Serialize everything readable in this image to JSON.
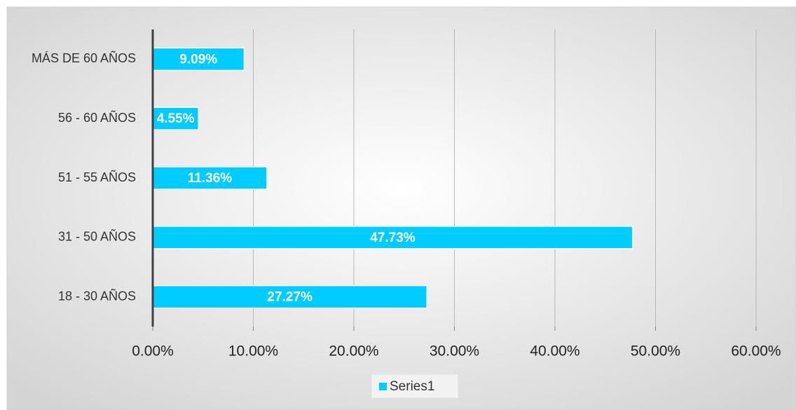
{
  "chart_data": {
    "type": "bar",
    "orientation": "horizontal",
    "categories": [
      "18 - 30 AÑOS",
      "31 - 50 AÑOS",
      "51 - 55 AÑOS",
      "56 - 60 AÑOS",
      "MÁS DE 60 AÑOS"
    ],
    "series": [
      {
        "name": "Series1",
        "color": "#00ccff",
        "values": [
          27.27,
          47.73,
          11.36,
          4.55,
          9.09
        ],
        "value_labels": [
          "27.27%",
          "47.73%",
          "11.36%",
          "4.55%",
          "9.09%"
        ]
      }
    ],
    "xlim": [
      0,
      60
    ],
    "xticks": [
      {
        "value": 0,
        "label": "0.00%"
      },
      {
        "value": 10,
        "label": "10.00%"
      },
      {
        "value": 20,
        "label": "20.00%"
      },
      {
        "value": 30,
        "label": "30.00%"
      },
      {
        "value": 40,
        "label": "40.00%"
      },
      {
        "value": 50,
        "label": "50.00%"
      },
      {
        "value": 60,
        "label": "60.00%"
      }
    ],
    "grid": true,
    "legend": "bottom"
  }
}
